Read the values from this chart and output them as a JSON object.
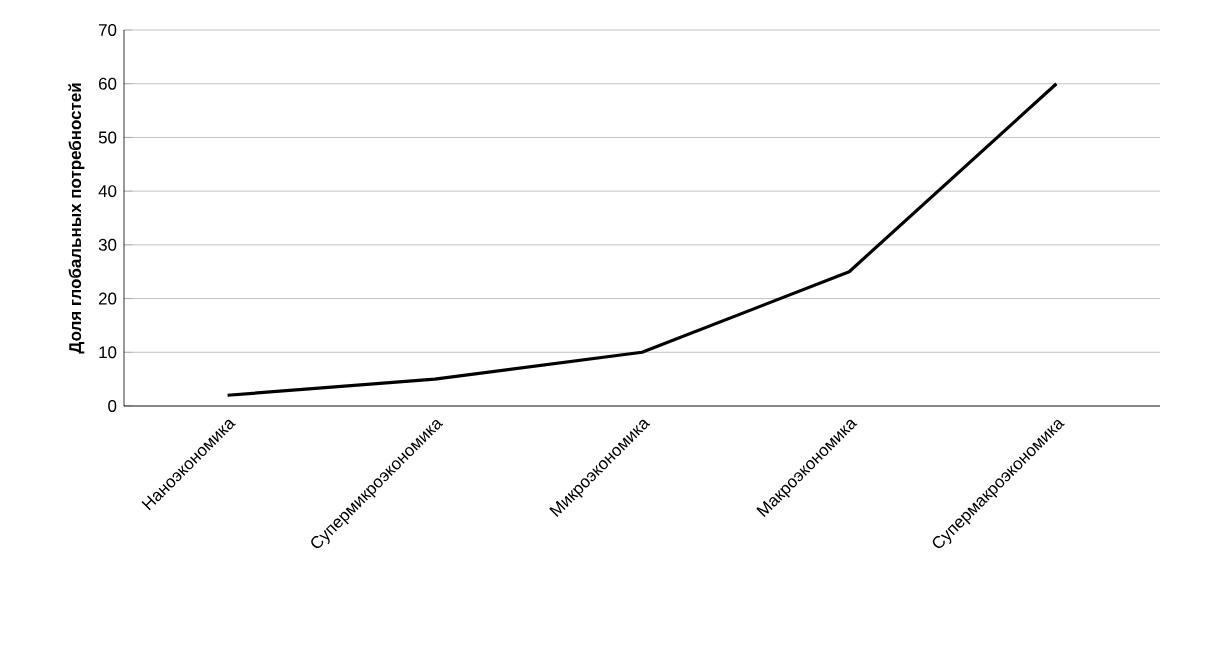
{
  "chart_data": {
    "type": "line",
    "ylabel": "Доля глобальных потребностей",
    "categories": [
      "Наноэкономика",
      "Супермикроэкономика",
      "Микроэкономика",
      "Макроэкономика",
      "Супермакроэкономика"
    ],
    "values": [
      2,
      5,
      10,
      25,
      60
    ],
    "color": "#000000",
    "ylim": [
      0,
      70
    ],
    "yticks": [
      0,
      10,
      20,
      30,
      40,
      50,
      60,
      70
    ],
    "grid": "y",
    "marker": "none",
    "line_style": "solid"
  }
}
